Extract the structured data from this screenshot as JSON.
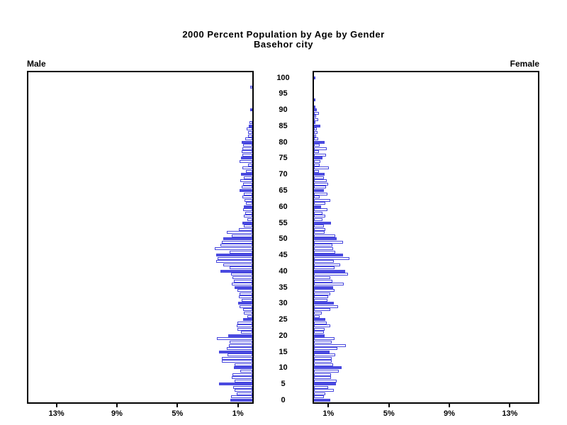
{
  "title": {
    "line1": "2000 Percent Population by Age by Gender",
    "line2": "Basehor city"
  },
  "labels": {
    "male": "Male",
    "female": "Female"
  },
  "colors": {
    "bar_outline": "#4747DE",
    "bar_fill_highlight": "#4B4BE1",
    "bar_fill_regular": "#FFFFFF",
    "axis": "#000000",
    "background": "#FFFFFF"
  },
  "chart_data": {
    "type": "bar",
    "variant": "population-pyramid",
    "title": "2000 Percent Population by Age by Gender",
    "subtitle": "Basehor city",
    "left_side_label": "Male",
    "right_side_label": "Female",
    "age_min": 0,
    "age_max": 100,
    "age_tick_interval": 5,
    "age_tick_labels": [
      "0",
      "5",
      "10",
      "15",
      "20",
      "25",
      "30",
      "35",
      "40",
      "45",
      "50",
      "55",
      "60",
      "65",
      "70",
      "75",
      "80",
      "85",
      "90",
      "95",
      "100"
    ],
    "x_axis": {
      "unit": "%",
      "max": 15,
      "tick_values": [
        1,
        5,
        9,
        13
      ],
      "tick_labels": [
        "1%",
        "5%",
        "9%",
        "13%"
      ]
    },
    "highlight_every": 5,
    "series": [
      {
        "name": "Male",
        "side": "left",
        "values_pct_by_age": [
          1.45,
          1.4,
          1.05,
          1.15,
          1.25,
          2.2,
          1.15,
          1.35,
          1.3,
          0.8,
          1.2,
          1.15,
          2.0,
          2.0,
          1.65,
          2.2,
          1.7,
          1.55,
          1.5,
          2.35,
          1.6,
          0.75,
          1.0,
          1.05,
          1.0,
          0.6,
          0.35,
          0.55,
          0.6,
          0.85,
          0.95,
          0.7,
          0.9,
          0.85,
          1.0,
          1.15,
          1.35,
          1.2,
          1.3,
          1.4,
          2.1,
          1.5,
          1.9,
          2.4,
          2.3,
          2.4,
          1.5,
          2.5,
          2.1,
          2.0,
          1.9,
          1.35,
          1.7,
          0.9,
          0.55,
          0.65,
          0.35,
          0.55,
          0.45,
          0.6,
          0.55,
          0.4,
          0.5,
          0.65,
          0.55,
          0.85,
          0.7,
          0.6,
          0.8,
          0.55,
          0.75,
          0.4,
          0.65,
          0.3,
          0.85,
          0.77,
          0.64,
          0.7,
          0.65,
          0.6,
          0.7,
          0.49,
          0.3,
          0.27,
          0.38,
          0.22,
          0.17,
          0.0,
          0.0,
          0.0,
          0.15,
          0.0,
          0.0,
          0.0,
          0.0,
          0.0,
          0.0,
          0.12,
          0.0,
          0.0,
          0.0
        ]
      },
      {
        "name": "Female",
        "side": "right",
        "values_pct_by_age": [
          1.1,
          0.66,
          0.75,
          1.32,
          0.94,
          1.46,
          1.5,
          1.13,
          1.13,
          1.65,
          1.84,
          1.27,
          1.18,
          1.18,
          1.4,
          1.04,
          1.56,
          2.12,
          1.18,
          1.37,
          0.7,
          0.66,
          0.7,
          1.08,
          0.85,
          0.75,
          0.38,
          0.52,
          1.08,
          1.6,
          1.32,
          0.9,
          0.94,
          1.08,
          1.37,
          1.27,
          1.98,
          1.22,
          1.08,
          2.26,
          2.08,
          1.37,
          1.75,
          1.32,
          2.36,
          1.93,
          1.4,
          1.27,
          1.22,
          1.9,
          1.5,
          1.4,
          0.7,
          0.75,
          0.66,
          1.13,
          0.57,
          0.75,
          0.57,
          0.9,
          0.47,
          0.75,
          1.08,
          0.38,
          0.9,
          0.66,
          0.8,
          0.94,
          0.85,
          0.66,
          0.7,
          0.33,
          1.0,
          0.38,
          0.42,
          0.57,
          0.8,
          0.33,
          0.85,
          0.38,
          0.7,
          0.28,
          0.15,
          0.23,
          0.2,
          0.42,
          0.1,
          0.28,
          0.15,
          0.33,
          0.2,
          0.1,
          0.0,
          0.07,
          0.0,
          0.0,
          0.0,
          0.0,
          0.0,
          0.0,
          0.1
        ]
      }
    ]
  }
}
